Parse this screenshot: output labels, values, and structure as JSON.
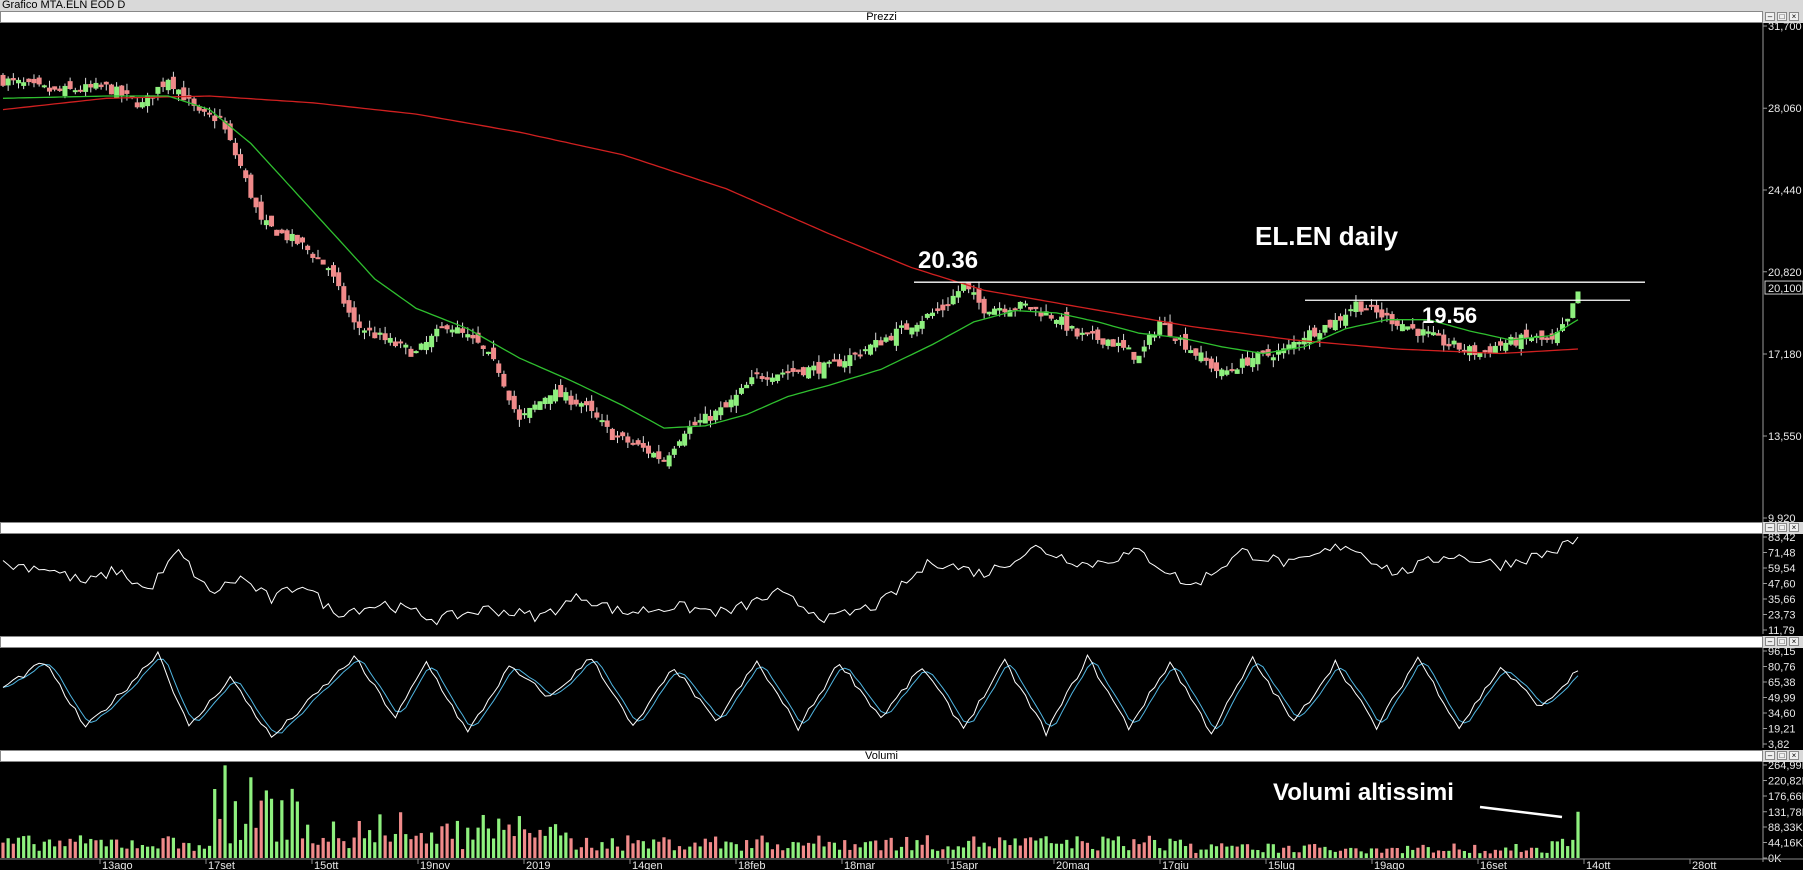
{
  "window": {
    "title": "Grafico MTA.ELN EOD D"
  },
  "panes": {
    "price_title": "Prezzi",
    "rsi_title": "",
    "stoch_title": "",
    "volume_title": "Volumi"
  },
  "colors": {
    "up": "#8ef07e",
    "down": "#f08a8a",
    "ma_short": "#2fbf2f",
    "ma_long": "#d02020",
    "rsi": "#ffffff",
    "stoch_k": "#ffffff",
    "stoch_d": "#4fb4e0"
  },
  "chart_data": [
    {
      "type": "candlestick",
      "name": "price",
      "title": "Prezzi",
      "ylim": [
        9.92,
        31.7
      ],
      "y_ticks": [
        "31,700",
        "28,060",
        "24,440",
        "20,820",
        "17,180",
        "13,550",
        "9,920"
      ],
      "y_tick_values": [
        31.7,
        28.06,
        24.44,
        20.82,
        17.18,
        13.55,
        9.92
      ],
      "last_price_label": "20,100",
      "last_price": 20.1,
      "x_labels": [
        "13ago",
        "17set",
        "15ott",
        "19nov",
        "2019",
        "14gen",
        "18feb",
        "18mar",
        "15apr",
        "20mag",
        "17giu",
        "15lug",
        "19ago",
        "16set",
        "14ott",
        "28ott"
      ],
      "closes_keypoints": [
        [
          0,
          29.3
        ],
        [
          10,
          28.8
        ],
        [
          20,
          29.0
        ],
        [
          27,
          28.2
        ],
        [
          32,
          29.4
        ],
        [
          38,
          27.8
        ],
        [
          42,
          27.6
        ],
        [
          46,
          25.5
        ],
        [
          50,
          23.0
        ],
        [
          58,
          22.0
        ],
        [
          63,
          21.0
        ],
        [
          68,
          18.5
        ],
        [
          74,
          17.8
        ],
        [
          80,
          17.2
        ],
        [
          86,
          18.5
        ],
        [
          92,
          17.6
        ],
        [
          96,
          16.5
        ],
        [
          100,
          14.2
        ],
        [
          106,
          15.5
        ],
        [
          112,
          15.0
        ],
        [
          118,
          13.6
        ],
        [
          124,
          13.0
        ],
        [
          128,
          12.5
        ],
        [
          132,
          13.8
        ],
        [
          140,
          14.8
        ],
        [
          146,
          16.2
        ],
        [
          152,
          16.4
        ],
        [
          160,
          16.6
        ],
        [
          168,
          17.5
        ],
        [
          176,
          18.5
        ],
        [
          182,
          19.2
        ],
        [
          186,
          20.2
        ],
        [
          190,
          19.2
        ],
        [
          198,
          19.3
        ],
        [
          204,
          18.8
        ],
        [
          208,
          18.0
        ],
        [
          214,
          17.8
        ],
        [
          220,
          17.0
        ],
        [
          224,
          18.6
        ],
        [
          230,
          17.4
        ],
        [
          236,
          16.3
        ],
        [
          242,
          17.0
        ],
        [
          248,
          17.3
        ],
        [
          252,
          18.0
        ],
        [
          258,
          18.6
        ],
        [
          262,
          19.4
        ],
        [
          268,
          18.8
        ],
        [
          274,
          18.2
        ],
        [
          280,
          17.6
        ],
        [
          286,
          17.2
        ],
        [
          290,
          17.6
        ],
        [
          296,
          17.9
        ],
        [
          300,
          17.7
        ],
        [
          303,
          18.6
        ],
        [
          305,
          19.9
        ]
      ],
      "ma_short_keypoints": [
        [
          0,
          28.5
        ],
        [
          20,
          28.6
        ],
        [
          32,
          28.6
        ],
        [
          40,
          28.0
        ],
        [
          48,
          26.5
        ],
        [
          56,
          24.5
        ],
        [
          64,
          22.5
        ],
        [
          72,
          20.5
        ],
        [
          80,
          19.2
        ],
        [
          90,
          18.3
        ],
        [
          100,
          17.0
        ],
        [
          110,
          16.0
        ],
        [
          120,
          14.9
        ],
        [
          128,
          13.9
        ],
        [
          136,
          14.0
        ],
        [
          144,
          14.5
        ],
        [
          152,
          15.3
        ],
        [
          160,
          15.8
        ],
        [
          170,
          16.5
        ],
        [
          180,
          17.6
        ],
        [
          188,
          18.6
        ],
        [
          196,
          19.1
        ],
        [
          204,
          19.0
        ],
        [
          212,
          18.6
        ],
        [
          220,
          18.1
        ],
        [
          228,
          17.9
        ],
        [
          236,
          17.5
        ],
        [
          244,
          17.2
        ],
        [
          252,
          17.5
        ],
        [
          260,
          18.3
        ],
        [
          268,
          18.7
        ],
        [
          276,
          18.7
        ],
        [
          284,
          18.2
        ],
        [
          292,
          17.8
        ],
        [
          300,
          18.0
        ],
        [
          305,
          18.7
        ]
      ],
      "ma_long_keypoints": [
        [
          0,
          28.0
        ],
        [
          20,
          28.5
        ],
        [
          40,
          28.6
        ],
        [
          60,
          28.3
        ],
        [
          80,
          27.8
        ],
        [
          100,
          27.0
        ],
        [
          120,
          26.0
        ],
        [
          140,
          24.5
        ],
        [
          160,
          22.5
        ],
        [
          176,
          21.0
        ],
        [
          190,
          20.0
        ],
        [
          210,
          19.2
        ],
        [
          230,
          18.4
        ],
        [
          250,
          17.8
        ],
        [
          270,
          17.4
        ],
        [
          290,
          17.2
        ],
        [
          305,
          17.4
        ]
      ],
      "resistance_levels": [
        {
          "label": "20.36",
          "value": 20.36
        },
        {
          "label": "19.56",
          "value": 19.56
        }
      ],
      "annotations": [
        "EL.EN daily"
      ]
    },
    {
      "type": "line",
      "name": "oscillator-1",
      "ylim": [
        11.79,
        83.42
      ],
      "y_ticks": [
        "83,42",
        "71,48",
        "59,54",
        "47,60",
        "35,66",
        "23,73",
        "11,79"
      ],
      "y_tick_values": [
        83.42,
        71.48,
        59.54,
        47.6,
        35.66,
        23.73,
        11.79
      ],
      "keypoints": [
        [
          0,
          62
        ],
        [
          8,
          60
        ],
        [
          16,
          48
        ],
        [
          22,
          58
        ],
        [
          28,
          42
        ],
        [
          34,
          72
        ],
        [
          40,
          40
        ],
        [
          46,
          52
        ],
        [
          52,
          35
        ],
        [
          58,
          48
        ],
        [
          64,
          25
        ],
        [
          74,
          32
        ],
        [
          84,
          20
        ],
        [
          94,
          28
        ],
        [
          104,
          22
        ],
        [
          112,
          38
        ],
        [
          120,
          25
        ],
        [
          130,
          30
        ],
        [
          140,
          25
        ],
        [
          150,
          40
        ],
        [
          160,
          20
        ],
        [
          170,
          32
        ],
        [
          180,
          65
        ],
        [
          190,
          55
        ],
        [
          200,
          75
        ],
        [
          210,
          62
        ],
        [
          220,
          72
        ],
        [
          230,
          45
        ],
        [
          240,
          72
        ],
        [
          250,
          62
        ],
        [
          260,
          78
        ],
        [
          270,
          55
        ],
        [
          280,
          70
        ],
        [
          290,
          62
        ],
        [
          300,
          72
        ],
        [
          306,
          84
        ]
      ]
    },
    {
      "type": "line",
      "name": "oscillator-2",
      "ylim": [
        3.82,
        96.15
      ],
      "y_ticks": [
        "96,15",
        "80,76",
        "65,38",
        "49,99",
        "34,60",
        "19,21",
        "3,82"
      ],
      "y_tick_values": [
        96.15,
        80.76,
        65.38,
        49.99,
        34.6,
        19.21,
        3.82
      ],
      "keypoints": [
        [
          0,
          60
        ],
        [
          8,
          85
        ],
        [
          16,
          20
        ],
        [
          24,
          60
        ],
        [
          30,
          95
        ],
        [
          36,
          20
        ],
        [
          44,
          70
        ],
        [
          52,
          10
        ],
        [
          60,
          50
        ],
        [
          68,
          90
        ],
        [
          76,
          30
        ],
        [
          82,
          85
        ],
        [
          90,
          15
        ],
        [
          98,
          80
        ],
        [
          106,
          50
        ],
        [
          114,
          90
        ],
        [
          122,
          20
        ],
        [
          130,
          80
        ],
        [
          138,
          25
        ],
        [
          146,
          85
        ],
        [
          154,
          20
        ],
        [
          162,
          85
        ],
        [
          170,
          30
        ],
        [
          178,
          80
        ],
        [
          186,
          20
        ],
        [
          194,
          85
        ],
        [
          202,
          15
        ],
        [
          210,
          90
        ],
        [
          218,
          20
        ],
        [
          226,
          85
        ],
        [
          234,
          15
        ],
        [
          242,
          88
        ],
        [
          250,
          25
        ],
        [
          258,
          85
        ],
        [
          266,
          20
        ],
        [
          274,
          90
        ],
        [
          282,
          20
        ],
        [
          290,
          80
        ],
        [
          298,
          40
        ],
        [
          306,
          82
        ]
      ]
    },
    {
      "type": "bar",
      "name": "volume",
      "title": "Volumi",
      "ylim": [
        0,
        264990
      ],
      "y_ticks": [
        "264,99K",
        "220,82K",
        "176,66K",
        "131,78K",
        "88,33K",
        "44,16K",
        "0K"
      ],
      "y_tick_values": [
        264990,
        220820,
        176660,
        131780,
        88330,
        44160,
        0
      ],
      "highlight_value": 131780,
      "annotation": "Volumi altissimi"
    }
  ]
}
